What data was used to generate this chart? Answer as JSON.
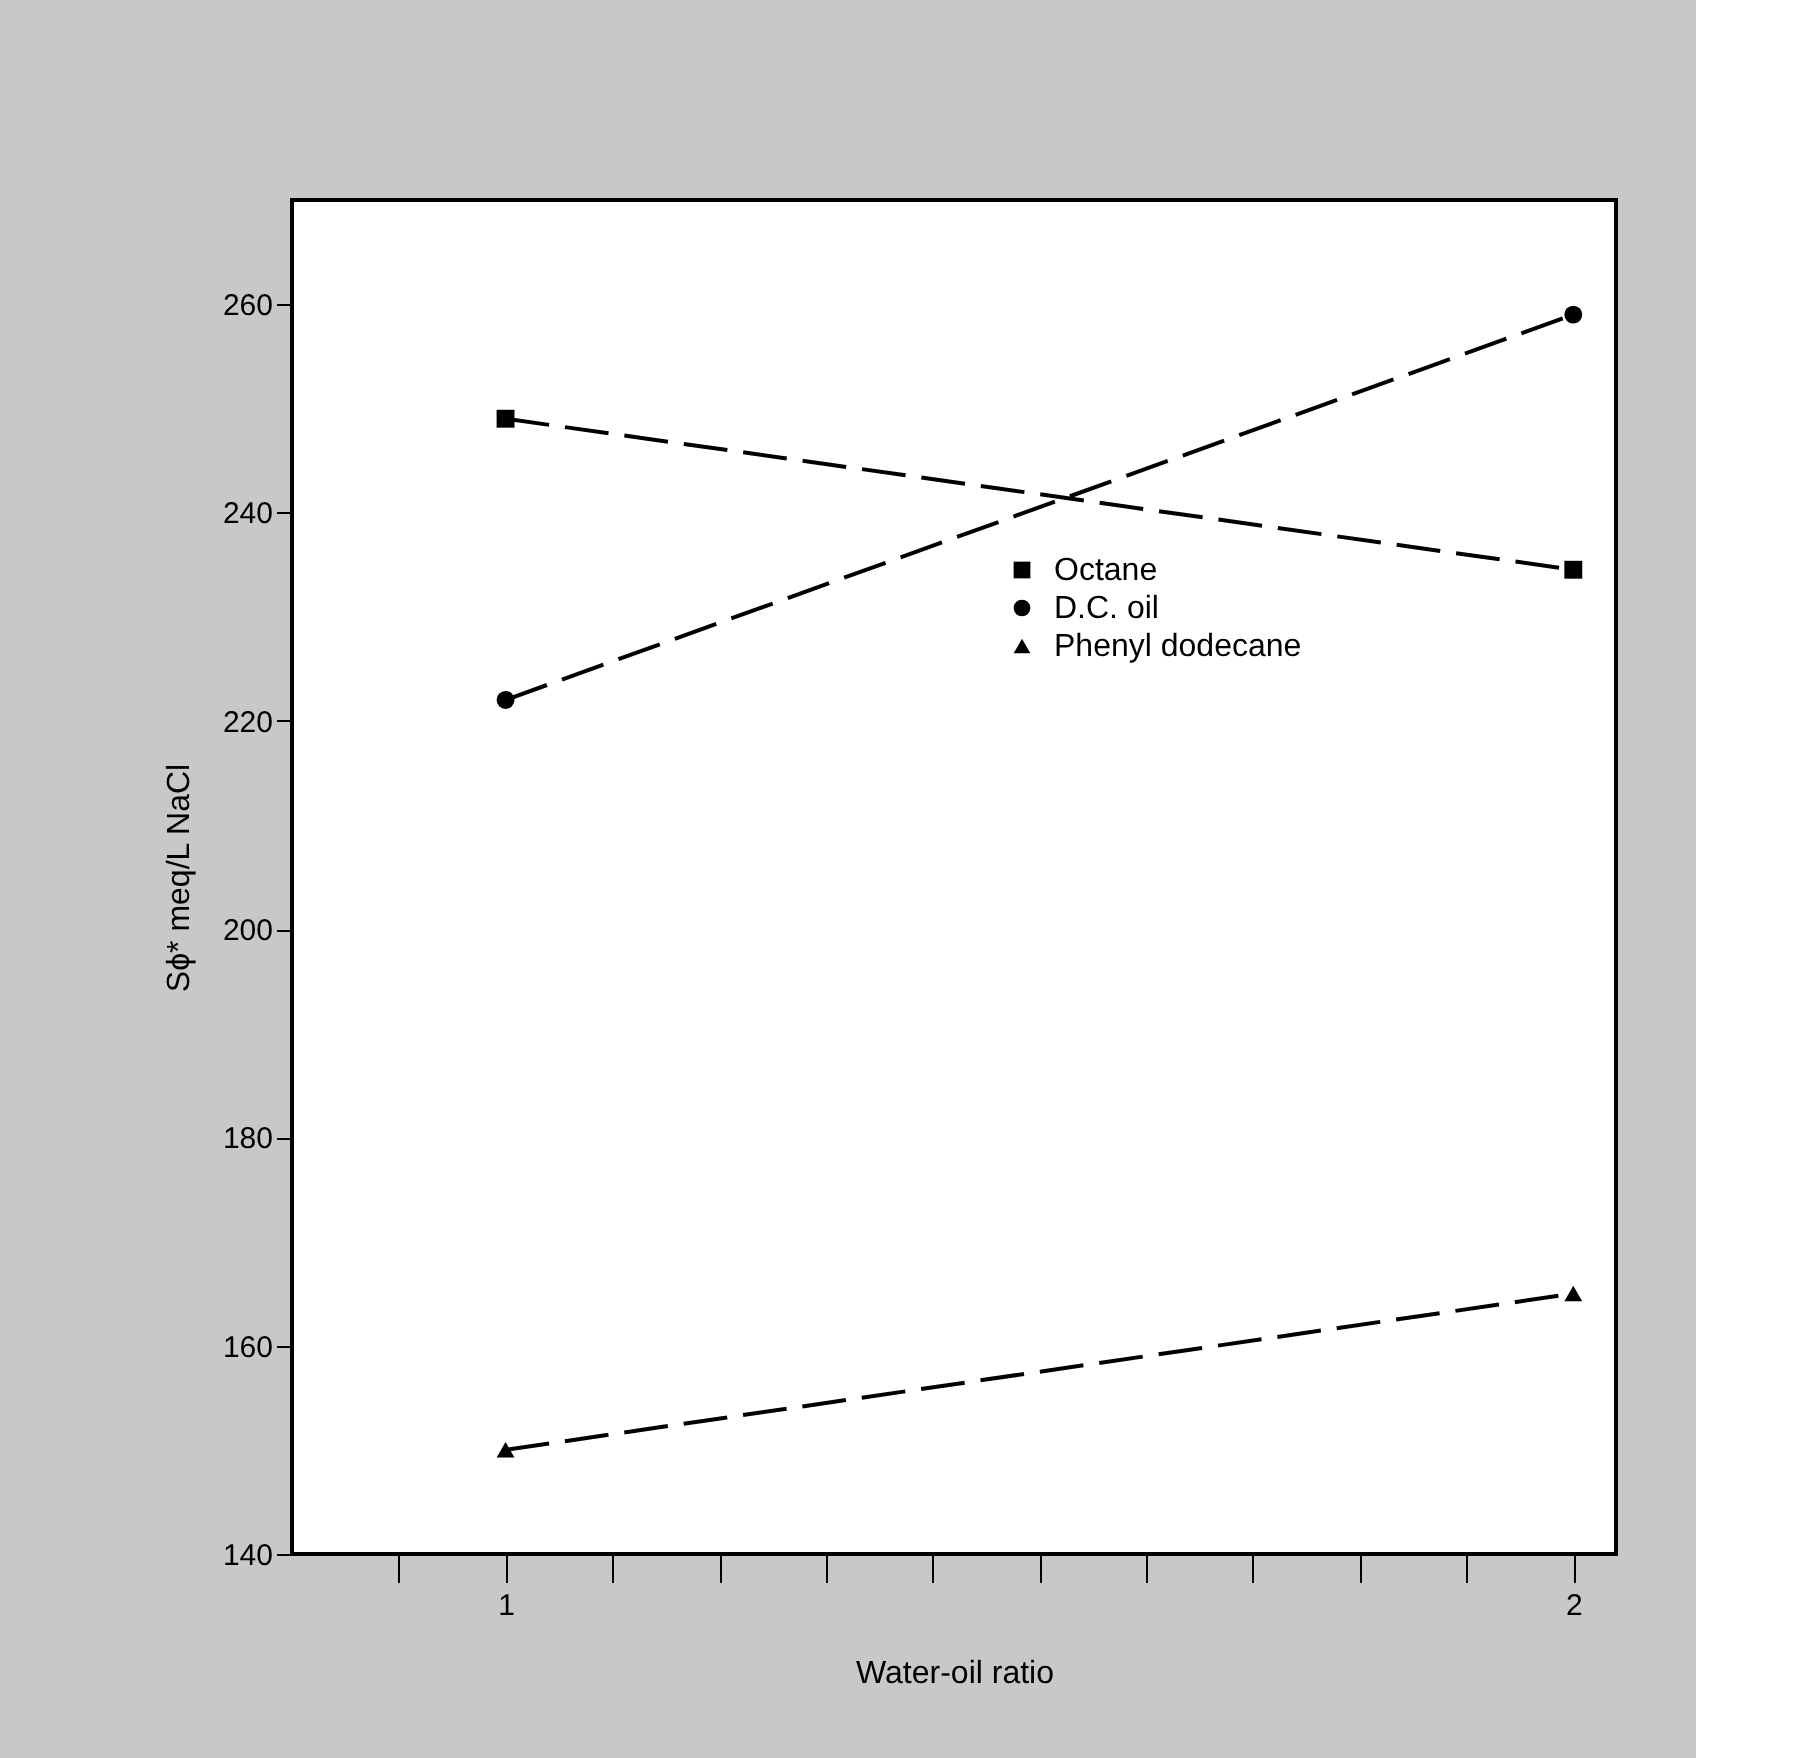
{
  "chart_data": {
    "type": "line",
    "xlabel": "Water-oil ratio",
    "ylabel": "Sϕ* meq/L NaCl",
    "x": [
      1,
      2
    ],
    "series": [
      {
        "name": "Octane",
        "color": "#000000",
        "marker": "square",
        "values": [
          249,
          234.5
        ]
      },
      {
        "name": "D.C. oil",
        "color": "#000000",
        "marker": "circle",
        "values": [
          222,
          259
        ]
      },
      {
        "name": "Phenyl dodecane",
        "color": "#000000",
        "marker": "triangle",
        "values": [
          150,
          165
        ]
      }
    ],
    "xlim": [
      0.8,
      2.04
    ],
    "xticks": [
      {
        "value": 0.9,
        "label": null
      },
      1,
      {
        "value": 1.1,
        "label": null
      },
      {
        "value": 1.2,
        "label": null
      },
      {
        "value": 1.3,
        "label": null
      },
      {
        "value": 1.4,
        "label": null
      },
      {
        "value": 1.5,
        "label": null
      },
      {
        "value": 1.6,
        "label": null
      },
      {
        "value": 1.7,
        "label": null
      },
      {
        "value": 1.8,
        "label": null
      },
      {
        "value": 1.9,
        "label": null
      },
      2
    ],
    "ylim": [
      140,
      270
    ],
    "yticks": [
      140,
      160,
      180,
      200,
      220,
      240,
      260
    ],
    "line_style": "dashed",
    "grid": false,
    "legend": "right"
  }
}
